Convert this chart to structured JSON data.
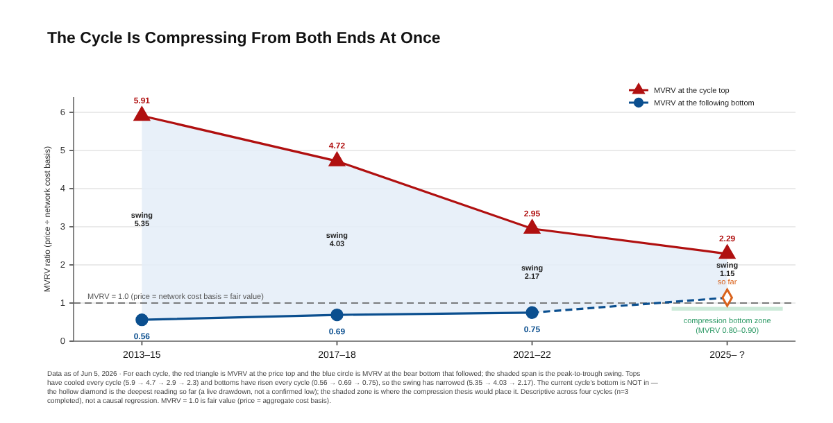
{
  "chart_data": {
    "type": "line",
    "title": "The Cycle Is Compressing From Both Ends At Once",
    "ylabel": "MVRV ratio (price ÷ network cost basis)",
    "categories": [
      "2013–15",
      "2017–18",
      "2021–22",
      "2025– ?"
    ],
    "series": [
      {
        "name": "MVRV at the cycle top",
        "color": "#b01010",
        "marker": "triangle",
        "values": [
          5.91,
          4.72,
          2.95,
          2.29
        ],
        "lower": [
          0.56,
          0.69,
          0.75,
          1.14
        ],
        "upper": [
          5.91,
          4.72,
          2.95,
          2.29
        ],
        "value_labels": [
          "5.91",
          "4.72",
          "2.95",
          "2.29"
        ]
      },
      {
        "name": "MVRV at the following bottom",
        "color": "#0b4f8f",
        "marker": "circle",
        "values": [
          0.56,
          0.69,
          0.75,
          null
        ],
        "value_labels": [
          "0.56",
          "0.69",
          "0.75",
          null
        ]
      },
      {
        "color": "#0b4f8f",
        "marker": "none",
        "line_style": "dashed",
        "values": [
          null,
          null,
          0.75,
          1.14
        ]
      },
      {
        "type": "scatter",
        "color": "#d9621b",
        "marker": "diamond",
        "values": [
          null,
          null,
          null,
          1.14
        ]
      }
    ],
    "ylim": [
      0,
      6.4
    ],
    "yticks": [
      0,
      1,
      2,
      3,
      4,
      5,
      6
    ],
    "grid": "y",
    "legend": "top right",
    "ref_lines": [
      {
        "axis": "y",
        "value": 1,
        "label": "MVRV = 1.0  (price = network cost basis = fair value)",
        "line_style": "dashed",
        "color": "#555555"
      }
    ],
    "bands": [
      {
        "axis": "y",
        "from": 0.8,
        "to": 0.9,
        "label": "compression bottom zone (MVRV 0.80–0.90)",
        "color": "#bfe5cf"
      }
    ],
    "annotations": [
      "swing\n5.35",
      "swing\n4.03",
      "swing\n2.17",
      "swing\n1.15\nso far",
      "Data as of Jun 5, 2026 · For each cycle, the red triangle is MVRV at the price top and the blue circle is MVRV at the bear bottom that followed; the shaded span is the peak-to-trough swing. Tops have cooled every cycle (5.9 → 4.7 → 2.9 → 2.3) and bottoms have risen every cycle (0.56 → 0.69 → 0.75), so the swing has narrowed (5.35 → 4.03 → 2.17). The current cycle's bottom is NOT in — the hollow diamond is the deepest reading so far (a live drawdown, not a confirmed low); the shaded zone is where the compression thesis would place it. Descriptive across four cycles (n=3 completed), not a causal regression. MVRV = 1.0 is fair value (price = aggregate cost basis)."
    ]
  }
}
